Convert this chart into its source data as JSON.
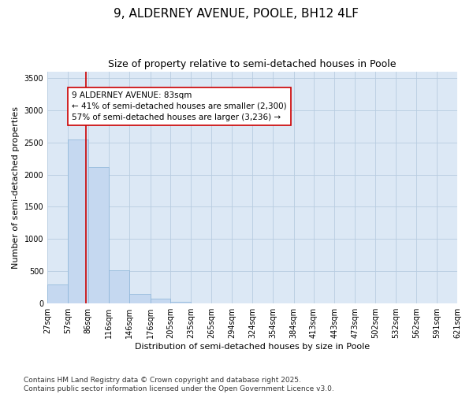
{
  "title_line1": "9, ALDERNEY AVENUE, POOLE, BH12 4LF",
  "title_line2": "Size of property relative to semi-detached houses in Poole",
  "xlabel": "Distribution of semi-detached houses by size in Poole",
  "ylabel": "Number of semi-detached properties",
  "bar_color": "#c5d8f0",
  "bar_edge_color": "#8ab4d8",
  "background_color": "#dce8f5",
  "fig_background": "#ffffff",
  "vline_color": "#cc0000",
  "vline_x": 83,
  "annotation_text": "9 ALDERNEY AVENUE: 83sqm\n← 41% of semi-detached houses are smaller (2,300)\n57% of semi-detached houses are larger (3,236) →",
  "annotation_box_color": "#ffffff",
  "annotation_box_edge": "#cc0000",
  "bins": [
    27,
    57,
    86,
    116,
    146,
    176,
    205,
    235,
    265,
    294,
    324,
    354,
    384,
    413,
    443,
    473,
    502,
    532,
    562,
    591,
    621
  ],
  "counts": [
    300,
    2540,
    2120,
    520,
    155,
    75,
    25,
    5,
    2,
    1,
    1,
    0,
    0,
    0,
    0,
    0,
    0,
    0,
    0,
    0
  ],
  "ylim": [
    0,
    3600
  ],
  "yticks": [
    0,
    500,
    1000,
    1500,
    2000,
    2500,
    3000,
    3500
  ],
  "footnote": "Contains HM Land Registry data © Crown copyright and database right 2025.\nContains public sector information licensed under the Open Government Licence v3.0.",
  "title_fontsize": 11,
  "subtitle_fontsize": 9,
  "axis_label_fontsize": 8,
  "tick_fontsize": 7,
  "annotation_fontsize": 7.5,
  "footnote_fontsize": 6.5
}
